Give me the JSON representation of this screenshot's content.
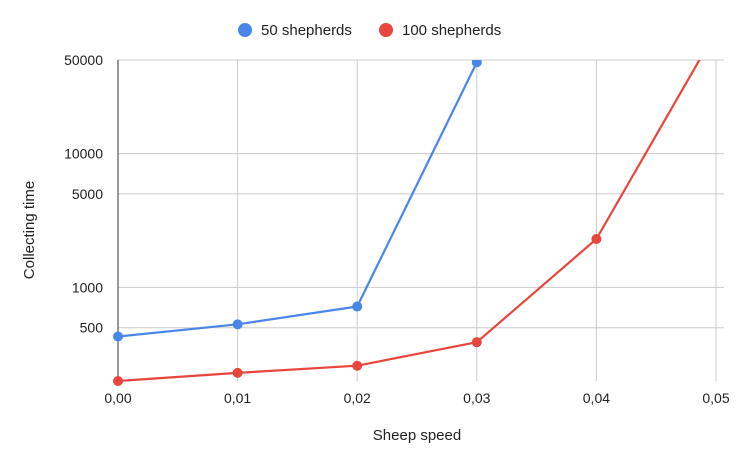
{
  "chart_data": {
    "type": "line",
    "xlabel": "Sheep speed",
    "ylabel": "Collecting time",
    "x_ticks": [
      "0,00",
      "0,01",
      "0,02",
      "0,03",
      "0,04",
      "0,05"
    ],
    "x_tick_values": [
      0,
      0.01,
      0.02,
      0.03,
      0.04,
      0.05
    ],
    "xlim": [
      0,
      0.05
    ],
    "y_scale": "log",
    "y_ticks": [
      "50000",
      "10000",
      "5000",
      "1000",
      "500"
    ],
    "y_tick_values": [
      50000,
      10000,
      5000,
      1000,
      500
    ],
    "ylim": [
      200,
      50000
    ],
    "grid": true,
    "legend_position": "top",
    "series": [
      {
        "name": "50 shepherds",
        "color": "#4a86e8",
        "x": [
          0,
          0.01,
          0.02,
          0.03
        ],
        "y": [
          430,
          530,
          720,
          48000
        ]
      },
      {
        "name": "100 shepherds",
        "color": "#e8453c",
        "x": [
          0,
          0.01,
          0.02,
          0.03,
          0.04,
          0.05
        ],
        "y": [
          200,
          230,
          260,
          390,
          2300,
          82000
        ]
      }
    ]
  }
}
